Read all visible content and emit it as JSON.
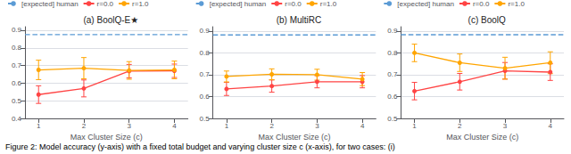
{
  "chart_data": [
    {
      "type": "line",
      "title": "(a) BoolQ-E★",
      "xlabel": "Max Cluster Size (c)",
      "x": [
        1,
        2,
        3,
        4
      ],
      "xlim": [
        0.7,
        4.3
      ],
      "xticks": [
        1,
        2,
        3,
        4
      ],
      "ylim": [
        0.4,
        0.92
      ],
      "yticks": [
        0.4,
        0.5,
        0.6,
        0.7,
        0.8,
        0.9
      ],
      "grid": "y",
      "legend": "upper left",
      "series": [
        {
          "name": "[expected] human",
          "type": "hline",
          "color": "#5B9BD5",
          "line_style": "dashed",
          "value": 0.875
        },
        {
          "name": "r=0.0",
          "color": "#FF4444",
          "marker": "circle",
          "line_style": "solid",
          "values": [
            0.535,
            0.57,
            0.668,
            0.67
          ],
          "yerr": [
            0.05,
            0.048,
            0.038,
            0.038
          ]
        },
        {
          "name": "r=1.0",
          "color": "#FFA500",
          "marker": "circle",
          "line_style": "solid",
          "values": [
            0.675,
            0.685,
            0.672,
            0.675
          ],
          "yerr": [
            0.055,
            0.06,
            0.05,
            0.05
          ]
        }
      ]
    },
    {
      "type": "line",
      "title": "(b) MultiRC",
      "xlabel": "Max Cluster Size (c)",
      "x": [
        1,
        2,
        3,
        4
      ],
      "xlim": [
        0.7,
        4.3
      ],
      "xticks": [
        1,
        2,
        3,
        4
      ],
      "ylim": [
        0.5,
        0.92
      ],
      "yticks": [
        0.5,
        0.6,
        0.7,
        0.8,
        0.9
      ],
      "grid": "y",
      "legend": "upper left",
      "series": [
        {
          "name": "[expected] human",
          "type": "hline",
          "color": "#5B9BD5",
          "line_style": "dashed",
          "value": 0.882
        },
        {
          "name": "r=0.0",
          "color": "#FF4444",
          "marker": "circle",
          "line_style": "solid",
          "values": [
            0.635,
            0.648,
            0.668,
            0.668
          ],
          "yerr": [
            0.03,
            0.028,
            0.028,
            0.028
          ]
        },
        {
          "name": "r=1.0",
          "color": "#FFA500",
          "marker": "circle",
          "line_style": "solid",
          "values": [
            0.692,
            0.702,
            0.7,
            0.68
          ],
          "yerr": [
            0.025,
            0.025,
            0.025,
            0.03
          ]
        }
      ]
    },
    {
      "type": "line",
      "title": "(c) BoolQ",
      "xlabel": "Max Cluster Size (c)",
      "x": [
        1,
        2,
        3,
        4
      ],
      "xlim": [
        0.7,
        4.3
      ],
      "xticks": [
        1,
        2,
        3,
        4
      ],
      "ylim": [
        0.5,
        0.92
      ],
      "yticks": [
        0.5,
        0.6,
        0.7,
        0.8,
        0.9
      ],
      "grid": "y",
      "legend": "upper left",
      "series": [
        {
          "name": "[expected] human",
          "type": "hline",
          "color": "#5B9BD5",
          "line_style": "dashed",
          "value": 0.883
        },
        {
          "name": "r=0.0",
          "color": "#FF4444",
          "marker": "circle",
          "line_style": "solid",
          "values": [
            0.625,
            0.668,
            0.718,
            0.712
          ],
          "yerr": [
            0.04,
            0.038,
            0.038,
            0.038
          ]
        },
        {
          "name": "r=1.0",
          "color": "#FFA500",
          "marker": "circle",
          "line_style": "solid",
          "values": [
            0.8,
            0.755,
            0.73,
            0.755
          ],
          "yerr": [
            0.04,
            0.04,
            0.05,
            0.05
          ]
        }
      ]
    }
  ],
  "caption": "Figure 2: Model accuracy (y-axis) with a fixed total budget and varying cluster size c (x-axis), for two cases: (i)"
}
